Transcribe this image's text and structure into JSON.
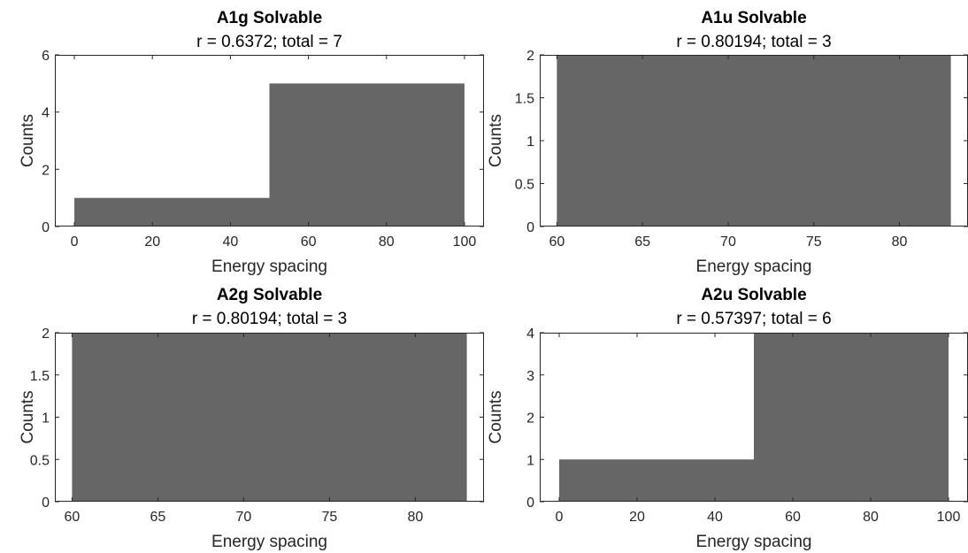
{
  "chart_data": [
    {
      "type": "bar",
      "title": "A1g Solvable",
      "subtitle": "r = 0.6372; total = 7",
      "xlabel": "Energy spacing",
      "ylabel": "Counts",
      "xlim": [
        -5,
        105
      ],
      "ylim": [
        0,
        6
      ],
      "xticks": [
        0,
        20,
        40,
        60,
        80,
        100
      ],
      "yticks": [
        0,
        2,
        4,
        6
      ],
      "bins": [
        {
          "x0": 0,
          "x1": 50,
          "count": 1
        },
        {
          "x0": 50,
          "x1": 100,
          "count": 5
        }
      ],
      "bar_color": "#666666"
    },
    {
      "type": "bar",
      "title": "A1u Solvable",
      "subtitle": "r = 0.80194; total = 3",
      "xlabel": "Energy spacing",
      "ylabel": "Counts",
      "xlim": [
        59,
        84
      ],
      "ylim": [
        0,
        2
      ],
      "xticks": [
        60,
        65,
        70,
        75,
        80
      ],
      "yticks": [
        "0",
        "0.5",
        "1",
        "1.5",
        "2"
      ],
      "bins": [
        {
          "x0": 60,
          "x1": 83,
          "count": 2
        }
      ],
      "bar_color": "#666666"
    },
    {
      "type": "bar",
      "title": "A2g Solvable",
      "subtitle": "r = 0.80194; total = 3",
      "xlabel": "Energy spacing",
      "ylabel": "Counts",
      "xlim": [
        59,
        84
      ],
      "ylim": [
        0,
        2
      ],
      "xticks": [
        60,
        65,
        70,
        75,
        80
      ],
      "yticks": [
        "0",
        "0.5",
        "1",
        "1.5",
        "2"
      ],
      "bins": [
        {
          "x0": 60,
          "x1": 83,
          "count": 2
        }
      ],
      "bar_color": "#666666"
    },
    {
      "type": "bar",
      "title": "A2u Solvable",
      "subtitle": "r = 0.57397; total = 6",
      "xlabel": "Energy spacing",
      "ylabel": "Counts",
      "xlim": [
        -5,
        105
      ],
      "ylim": [
        0,
        4
      ],
      "xticks": [
        0,
        20,
        40,
        60,
        80,
        100
      ],
      "yticks": [
        0,
        1,
        2,
        3,
        4
      ],
      "bins": [
        {
          "x0": 0,
          "x1": 50,
          "count": 1
        },
        {
          "x0": 50,
          "x1": 100,
          "count": 4
        }
      ],
      "bar_color": "#666666"
    }
  ]
}
